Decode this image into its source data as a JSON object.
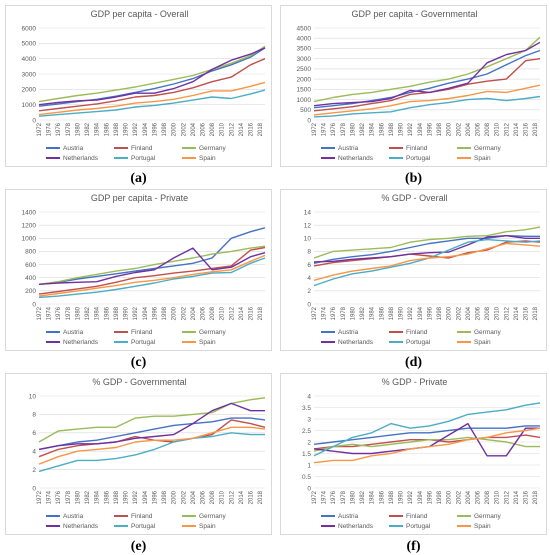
{
  "colors": {
    "Austria": "#4472c4",
    "Finland": "#c0504d",
    "Germany": "#9bbb59",
    "Netherlands": "#7030a0",
    "Portugal": "#4bacc6",
    "Spain": "#f79646"
  },
  "x_ticks": [
    "1972",
    "1974",
    "1976",
    "1978",
    "1980",
    "1982",
    "1984",
    "1986",
    "1988",
    "1990",
    "1992",
    "1994",
    "1996",
    "1998",
    "2000",
    "2002",
    "2004",
    "2006",
    "2008",
    "2010",
    "2012",
    "2014",
    "2016",
    "2018"
  ],
  "panels": [
    {
      "caption": "(a)",
      "chart_data": {
        "type": "line",
        "title": "GDP per capita - Overall",
        "ylim": [
          0,
          6000
        ],
        "y_ticks": [
          "0",
          "1000",
          "2000",
          "3000",
          "4000",
          "5000",
          "6000"
        ],
        "x": [
          1972,
          1976,
          1980,
          1984,
          1988,
          1992,
          1996,
          2000,
          2004,
          2008,
          2012,
          2016,
          2019
        ],
        "series": [
          {
            "name": "Austria",
            "values": [
              900,
              1050,
              1200,
              1350,
              1550,
              1800,
              2050,
              2350,
              2700,
              3200,
              3600,
              4100,
              4700
            ]
          },
          {
            "name": "Finland",
            "values": [
              600,
              750,
              900,
              1050,
              1250,
              1500,
              1600,
              1800,
              2100,
              2500,
              2800,
              3600,
              4000
            ]
          },
          {
            "name": "Germany",
            "values": [
              1200,
              1400,
              1600,
              1750,
              1950,
              2150,
              2400,
              2650,
              2900,
              3300,
              3700,
              4200,
              4800
            ]
          },
          {
            "name": "Netherlands",
            "values": [
              1000,
              1150,
              1250,
              1300,
              1500,
              1750,
              1750,
              2050,
              2500,
              3300,
              3900,
              4300,
              4700
            ]
          },
          {
            "name": "Portugal",
            "values": [
              250,
              350,
              450,
              550,
              650,
              850,
              950,
              1100,
              1300,
              1500,
              1400,
              1700,
              1950
            ]
          },
          {
            "name": "Spain",
            "values": [
              350,
              500,
              650,
              750,
              900,
              1100,
              1200,
              1350,
              1600,
              1900,
              1900,
              2200,
              2450
            ]
          }
        ]
      }
    },
    {
      "caption": "(b)",
      "chart_data": {
        "type": "line",
        "title": "GDP per capita - Governmental",
        "ylim": [
          0,
          4500
        ],
        "y_ticks": [
          "0",
          "500",
          "1000",
          "1500",
          "2000",
          "2500",
          "3000",
          "3500",
          "4000",
          "4500"
        ],
        "x": [
          1972,
          1976,
          1980,
          1984,
          1988,
          1992,
          1996,
          2000,
          2004,
          2008,
          2012,
          2016,
          2019
        ],
        "series": [
          {
            "name": "Austria",
            "values": [
              600,
              700,
              800,
              950,
              1100,
              1350,
              1550,
              1800,
              2000,
              2250,
              2700,
              3150,
              3400
            ]
          },
          {
            "name": "Finland",
            "values": [
              450,
              550,
              650,
              800,
              950,
              1250,
              1350,
              1500,
              1750,
              1900,
              2000,
              2900,
              3000
            ]
          },
          {
            "name": "Germany",
            "values": [
              900,
              1100,
              1250,
              1350,
              1500,
              1650,
              1850,
              2000,
              2250,
              2600,
              3000,
              3400,
              4050
            ]
          },
          {
            "name": "Netherlands",
            "values": [
              700,
              800,
              850,
              900,
              1050,
              1450,
              1350,
              1550,
              1800,
              2800,
              3200,
              3400,
              3800
            ]
          },
          {
            "name": "Portugal",
            "values": [
              150,
              200,
              300,
              350,
              400,
              600,
              750,
              850,
              1000,
              1050,
              950,
              1050,
              1150
            ]
          },
          {
            "name": "Spain",
            "values": [
              250,
              350,
              450,
              550,
              700,
              900,
              950,
              1050,
              1200,
              1400,
              1350,
              1550,
              1700
            ]
          }
        ]
      }
    },
    {
      "caption": "(c)",
      "chart_data": {
        "type": "line",
        "title": "GDP per capita - Private",
        "ylim": [
          0,
          1400
        ],
        "y_ticks": [
          "0",
          "200",
          "400",
          "600",
          "800",
          "1000",
          "1200",
          "1400"
        ],
        "x": [
          1972,
          1976,
          1980,
          1984,
          1988,
          1992,
          1996,
          2000,
          2004,
          2008,
          2012,
          2016,
          2019
        ],
        "series": [
          {
            "name": "Austria",
            "values": [
              300,
              330,
              380,
              420,
              460,
              500,
              540,
              580,
              620,
              700,
              1000,
              1100,
              1160
            ]
          },
          {
            "name": "Finland",
            "values": [
              150,
              190,
              230,
              270,
              330,
              400,
              430,
              470,
              500,
              540,
              580,
              820,
              860
            ]
          },
          {
            "name": "Germany",
            "values": [
              300,
              340,
              400,
              450,
              500,
              540,
              600,
              650,
              700,
              760,
              800,
              850,
              880
            ]
          },
          {
            "name": "Netherlands",
            "values": [
              300,
              320,
              330,
              340,
              420,
              480,
              520,
              700,
              850,
              520,
              560,
              720,
              780
            ]
          },
          {
            "name": "Portugal",
            "values": [
              100,
              120,
              150,
              180,
              220,
              270,
              320,
              380,
              420,
              470,
              480,
              620,
              700
            ]
          },
          {
            "name": "Spain",
            "values": [
              120,
              160,
              200,
              240,
              280,
              330,
              360,
              400,
              450,
              490,
              520,
              650,
              740
            ]
          }
        ]
      }
    },
    {
      "caption": "(d)",
      "chart_data": {
        "type": "line",
        "title": "% GDP - Overall",
        "ylim": [
          0,
          14
        ],
        "y_ticks": [
          "0",
          "2",
          "4",
          "6",
          "8",
          "10",
          "12",
          "14"
        ],
        "x": [
          1972,
          1976,
          1980,
          1984,
          1988,
          1992,
          1996,
          2000,
          2004,
          2008,
          2012,
          2016,
          2019
        ],
        "series": [
          {
            "name": "Austria",
            "values": [
              6.2,
              6.8,
              7.2,
              7.5,
              8.0,
              8.6,
              9.2,
              9.6,
              10.0,
              10.0,
              10.4,
              10.3,
              10.3
            ]
          },
          {
            "name": "Finland",
            "values": [
              5.8,
              6.3,
              6.6,
              6.9,
              7.2,
              7.6,
              7.3,
              7.0,
              7.8,
              8.2,
              9.4,
              9.6,
              9.4
            ]
          },
          {
            "name": "Germany",
            "values": [
              7.0,
              8.0,
              8.2,
              8.4,
              8.6,
              9.4,
              9.8,
              10.0,
              10.3,
              10.4,
              11.0,
              11.3,
              11.7
            ]
          },
          {
            "name": "Netherlands",
            "values": [
              6.4,
              6.5,
              6.8,
              7.0,
              7.2,
              7.6,
              7.8,
              7.9,
              9.0,
              10.2,
              10.4,
              10.0,
              10.0
            ]
          },
          {
            "name": "Portugal",
            "values": [
              2.8,
              3.8,
              4.6,
              5.0,
              5.6,
              6.2,
              7.0,
              8.2,
              9.4,
              9.8,
              9.6,
              9.4,
              9.6
            ]
          },
          {
            "name": "Spain",
            "values": [
              3.6,
              4.4,
              5.0,
              5.4,
              5.8,
              6.6,
              7.0,
              7.2,
              7.6,
              8.4,
              9.2,
              9.0,
              8.8
            ]
          }
        ]
      }
    },
    {
      "caption": "(e)",
      "chart_data": {
        "type": "line",
        "title": "% GDP - Governmental",
        "ylim": [
          0,
          10
        ],
        "y_ticks": [
          "0",
          "2",
          "4",
          "6",
          "8",
          "10"
        ],
        "x": [
          1972,
          1976,
          1980,
          1984,
          1988,
          1992,
          1996,
          2000,
          2004,
          2008,
          2012,
          2016,
          2019
        ],
        "series": [
          {
            "name": "Austria",
            "values": [
              4.2,
              4.6,
              5.0,
              5.2,
              5.6,
              6.0,
              6.4,
              6.8,
              7.0,
              7.2,
              7.6,
              7.6,
              7.4
            ]
          },
          {
            "name": "Finland",
            "values": [
              3.4,
              4.2,
              4.6,
              4.8,
              5.0,
              5.6,
              5.2,
              5.0,
              5.4,
              5.8,
              7.4,
              7.0,
              6.6
            ]
          },
          {
            "name": "Germany",
            "values": [
              5.0,
              6.2,
              6.4,
              6.6,
              6.6,
              7.6,
              7.8,
              7.8,
              8.0,
              8.2,
              9.2,
              9.6,
              9.8
            ]
          },
          {
            "name": "Netherlands",
            "values": [
              4.2,
              4.6,
              4.8,
              4.8,
              5.0,
              5.4,
              5.6,
              5.8,
              7.0,
              8.4,
              9.2,
              8.4,
              8.4
            ]
          },
          {
            "name": "Portugal",
            "values": [
              1.8,
              2.4,
              3.0,
              3.0,
              3.2,
              3.6,
              4.2,
              5.0,
              5.4,
              5.6,
              6.0,
              5.8,
              5.8
            ]
          },
          {
            "name": "Spain",
            "values": [
              2.6,
              3.4,
              4.0,
              4.2,
              4.4,
              5.0,
              5.2,
              5.2,
              5.4,
              6.0,
              6.6,
              6.6,
              6.4
            ]
          }
        ]
      }
    },
    {
      "caption": "(f)",
      "chart_data": {
        "type": "line",
        "title": "% GDP - Private",
        "ylim": [
          0,
          4
        ],
        "y_ticks": [
          "0",
          "0.5",
          "1",
          "1.5",
          "2",
          "2.5",
          "3",
          "3.5",
          "4"
        ],
        "x": [
          1972,
          1976,
          1980,
          1984,
          1988,
          1992,
          1996,
          2000,
          2004,
          2008,
          2012,
          2016,
          2019
        ],
        "series": [
          {
            "name": "Austria",
            "values": [
              1.9,
              2.0,
              2.1,
              2.2,
              2.3,
              2.4,
              2.4,
              2.5,
              2.6,
              2.6,
              2.6,
              2.7,
              2.7
            ]
          },
          {
            "name": "Finland",
            "values": [
              1.7,
              1.8,
              1.8,
              1.9,
              2.0,
              2.1,
              2.1,
              2.0,
              2.1,
              2.2,
              2.2,
              2.3,
              2.2
            ]
          },
          {
            "name": "Germany",
            "values": [
              1.6,
              1.8,
              1.9,
              1.8,
              1.9,
              2.0,
              2.1,
              2.1,
              2.2,
              2.1,
              2.0,
              1.8,
              1.8
            ]
          },
          {
            "name": "Netherlands",
            "values": [
              1.7,
              1.6,
              1.5,
              1.5,
              1.6,
              1.7,
              1.8,
              2.3,
              2.8,
              1.4,
              1.4,
              2.6,
              2.6
            ]
          },
          {
            "name": "Portugal",
            "values": [
              1.4,
              1.8,
              2.2,
              2.4,
              2.8,
              2.6,
              2.7,
              2.9,
              3.2,
              3.3,
              3.4,
              3.6,
              3.7
            ]
          },
          {
            "name": "Spain",
            "values": [
              1.1,
              1.2,
              1.2,
              1.4,
              1.5,
              1.7,
              1.8,
              1.9,
              2.1,
              2.2,
              2.4,
              2.5,
              2.6
            ]
          }
        ]
      }
    }
  ]
}
